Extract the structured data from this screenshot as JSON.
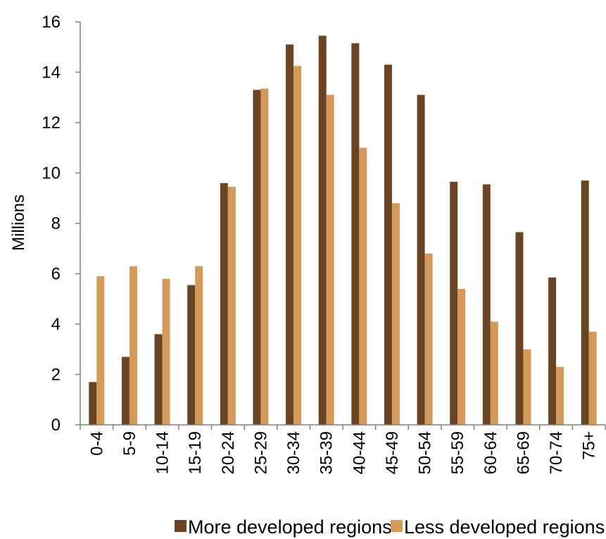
{
  "chart_data": {
    "type": "bar",
    "title": "",
    "xlabel": "",
    "ylabel": "Millions",
    "ylim": [
      0,
      16
    ],
    "yticks": [
      0,
      2,
      4,
      6,
      8,
      10,
      12,
      14,
      16
    ],
    "grid": false,
    "legend_position": "bottom",
    "categories": [
      "0-4",
      "5-9",
      "10-14",
      "15-19",
      "20-24",
      "25-29",
      "30-34",
      "35-39",
      "40-44",
      "45-49",
      "50-54",
      "55-59",
      "60-64",
      "65-69",
      "70-74",
      "75+"
    ],
    "series": [
      {
        "name": "More developed regions",
        "color": "#6B4423",
        "values": [
          1.7,
          2.7,
          3.6,
          5.55,
          9.6,
          13.3,
          15.1,
          15.45,
          15.15,
          14.3,
          13.1,
          9.65,
          9.55,
          7.65,
          5.85,
          9.7
        ]
      },
      {
        "name": "Less developed regions",
        "color": "#D49A5A",
        "values": [
          5.9,
          6.3,
          5.8,
          6.3,
          9.45,
          13.35,
          14.25,
          13.1,
          11.0,
          8.8,
          6.8,
          5.4,
          4.1,
          3.0,
          2.3,
          3.7
        ]
      }
    ]
  }
}
